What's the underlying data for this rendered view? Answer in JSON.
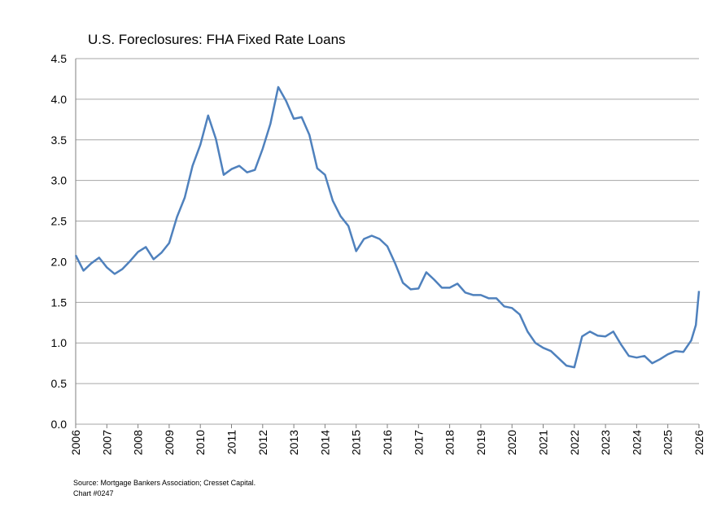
{
  "chart_data": {
    "type": "line",
    "title": "U.S. Foreclosures: FHA Fixed Rate Loans",
    "x": [
      2006,
      2006.25,
      2006.5,
      2006.75,
      2007,
      2007.25,
      2007.5,
      2007.75,
      2008,
      2008.25,
      2008.5,
      2008.75,
      2009,
      2009.25,
      2009.5,
      2009.75,
      2010,
      2010.25,
      2010.5,
      2010.75,
      2011,
      2011.25,
      2011.5,
      2011.75,
      2012,
      2012.25,
      2012.5,
      2012.75,
      2013,
      2013.25,
      2013.5,
      2013.75,
      2014,
      2014.25,
      2014.5,
      2014.75,
      2015,
      2015.25,
      2015.5,
      2015.75,
      2016,
      2016.25,
      2016.5,
      2016.75,
      2017,
      2017.25,
      2017.5,
      2017.75,
      2018,
      2018.25,
      2018.5,
      2018.75,
      2019,
      2019.25,
      2019.5,
      2019.75,
      2020,
      2020.25,
      2020.5,
      2020.75,
      2021,
      2021.25,
      2021.5,
      2021.75,
      2022,
      2022.25,
      2022.5,
      2022.75,
      2023,
      2023.25,
      2023.5,
      2023.75,
      2024,
      2024.25,
      2024.5,
      2024.75,
      2025,
      2025.25,
      2025.5,
      2025.75,
      2025.9,
      2026
    ],
    "values": [
      2.08,
      1.89,
      1.98,
      2.05,
      1.93,
      1.85,
      1.91,
      2.01,
      2.12,
      2.18,
      2.03,
      2.11,
      2.23,
      2.55,
      2.79,
      3.18,
      3.44,
      3.8,
      3.51,
      3.07,
      3.14,
      3.18,
      3.1,
      3.13,
      3.39,
      3.7,
      4.15,
      3.98,
      3.76,
      3.78,
      3.56,
      3.15,
      3.07,
      2.75,
      2.56,
      2.44,
      2.13,
      2.28,
      2.32,
      2.28,
      2.19,
      1.98,
      1.74,
      1.66,
      1.67,
      1.87,
      1.78,
      1.68,
      1.68,
      1.73,
      1.62,
      1.59,
      1.59,
      1.55,
      1.55,
      1.45,
      1.43,
      1.35,
      1.14,
      1.0,
      0.94,
      0.9,
      0.81,
      0.72,
      0.7,
      1.08,
      1.14,
      1.09,
      1.08,
      1.14,
      0.98,
      0.84,
      0.82,
      0.84,
      0.75,
      0.8,
      0.86,
      0.9,
      0.89,
      1.03,
      1.22,
      1.64
    ],
    "color": "#4f81bd",
    "xlim": [
      2006,
      2026
    ],
    "xticks": [
      2006,
      2007,
      2008,
      2009,
      2010,
      2011,
      2012,
      2013,
      2014,
      2015,
      2016,
      2017,
      2018,
      2019,
      2020,
      2021,
      2022,
      2023,
      2024,
      2025,
      2026
    ],
    "ylim": [
      0,
      4.5
    ],
    "yticks": [
      {
        "value": 0,
        "label": "0.0"
      },
      0.5,
      {
        "value": 1,
        "label": "1.0"
      },
      1.5,
      {
        "value": 2,
        "label": "2.0"
      },
      2.5,
      {
        "value": 3,
        "label": "3.0"
      },
      3.5,
      {
        "value": 4,
        "label": "4.0"
      },
      4.5
    ],
    "grid": true,
    "notes": [
      "Source: Mortgage Bankers Association; Cresset Capital.",
      "Chart #0247"
    ]
  }
}
